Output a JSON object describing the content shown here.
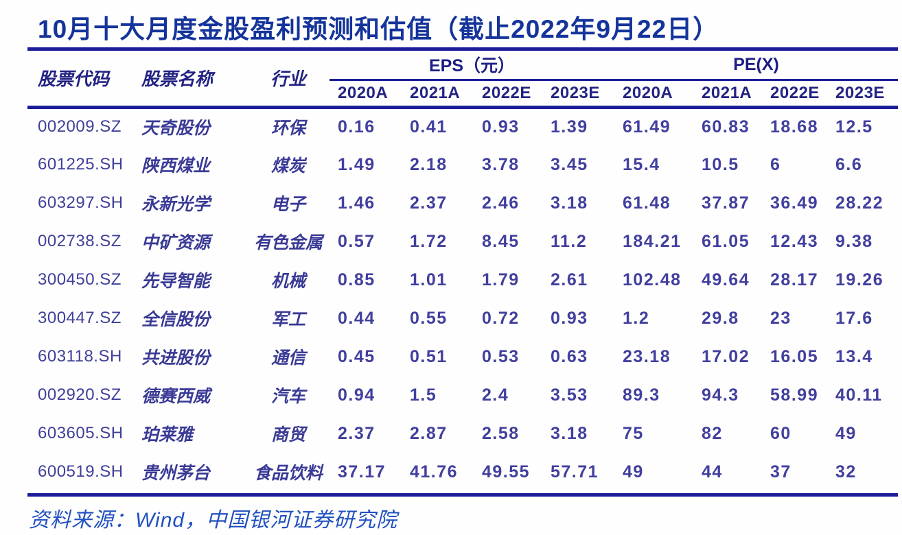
{
  "title": "10月十大月度金股盈利预测和估值（截止2022年9月22日）",
  "table": {
    "columns": {
      "code": "股票代码",
      "name": "股票名称",
      "industry": "行业"
    },
    "groups": {
      "eps": "EPS（元）",
      "pe": "PE(X)"
    },
    "years": [
      "2020A",
      "2021A",
      "2022E",
      "2023E",
      "2020A",
      "2021A",
      "2022E",
      "2023E"
    ],
    "rows": [
      {
        "code": "002009.SZ",
        "name": "天奇股份",
        "industry": "环保",
        "eps": [
          "0.16",
          "0.41",
          "0.93",
          "1.39"
        ],
        "pe": [
          "61.49",
          "60.83",
          "18.68",
          "12.5"
        ]
      },
      {
        "code": "601225.SH",
        "name": "陕西煤业",
        "industry": "煤炭",
        "eps": [
          "1.49",
          "2.18",
          "3.78",
          "3.45"
        ],
        "pe": [
          "15.4",
          "10.5",
          "6",
          "6.6"
        ]
      },
      {
        "code": "603297.SH",
        "name": "永新光学",
        "industry": "电子",
        "eps": [
          "1.46",
          "2.37",
          "2.46",
          "3.18"
        ],
        "pe": [
          "61.48",
          "37.87",
          "36.49",
          "28.22"
        ]
      },
      {
        "code": "002738.SZ",
        "name": "中矿资源",
        "industry": "有色金属",
        "eps": [
          "0.57",
          "1.72",
          "8.45",
          "11.2"
        ],
        "pe": [
          "184.21",
          "61.05",
          "12.43",
          "9.38"
        ]
      },
      {
        "code": "300450.SZ",
        "name": "先导智能",
        "industry": "机械",
        "eps": [
          "0.85",
          "1.01",
          "1.79",
          "2.61"
        ],
        "pe": [
          "102.48",
          "49.64",
          "28.17",
          "19.26"
        ]
      },
      {
        "code": "300447.SZ",
        "name": "全信股份",
        "industry": "军工",
        "eps": [
          "0.44",
          "0.55",
          "0.72",
          "0.93"
        ],
        "pe": [
          "1.2",
          "29.8",
          "23",
          "17.6"
        ]
      },
      {
        "code": "603118.SH",
        "name": "共进股份",
        "industry": "通信",
        "eps": [
          "0.45",
          "0.51",
          "0.53",
          "0.63"
        ],
        "pe": [
          "23.18",
          "17.02",
          "16.05",
          "13.4"
        ]
      },
      {
        "code": "002920.SZ",
        "name": "德赛西威",
        "industry": "汽车",
        "eps": [
          "0.94",
          "1.5",
          "2.4",
          "3.53"
        ],
        "pe": [
          "89.3",
          "94.3",
          "58.99",
          "40.11"
        ]
      },
      {
        "code": "603605.SH",
        "name": "珀莱雅",
        "industry": "商贸",
        "eps": [
          "2.37",
          "2.87",
          "2.58",
          "3.18"
        ],
        "pe": [
          "75",
          "82",
          "60",
          "49"
        ]
      },
      {
        "code": "600519.SH",
        "name": "贵州茅台",
        "industry": "食品饮料",
        "eps": [
          "37.17",
          "41.76",
          "49.55",
          "57.71"
        ],
        "pe": [
          "49",
          "44",
          "37",
          "32"
        ]
      }
    ]
  },
  "footer": {
    "source": "资料来源：Wind，中国银河证券研究院"
  },
  "colors": {
    "title": "#15349b",
    "rule": "#1b1d99",
    "header_text": "#232384",
    "body_text": "#413f9e",
    "footer_text": "#2151c0"
  }
}
